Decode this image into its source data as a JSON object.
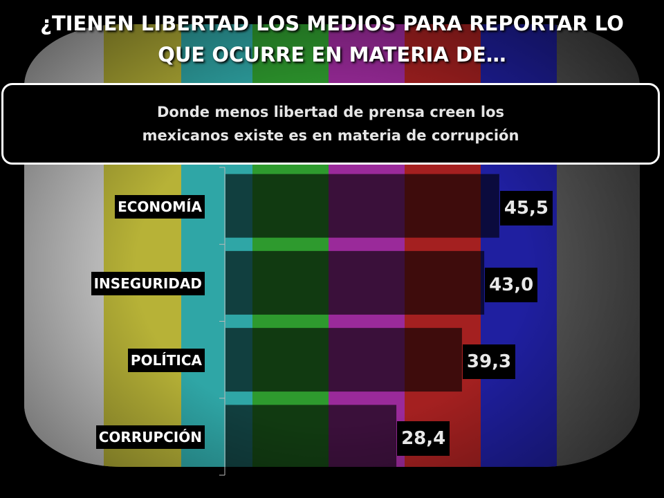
{
  "header": {
    "title_line1": "¿TIENEN LIBERTAD LOS MEDIOS PARA REPORTAR LO",
    "title_line2": "QUE OCURRE EN MATERIA DE…"
  },
  "callout": {
    "line1": "Donde menos libertad de prensa creen los",
    "line2": "mexicanos existe es en materia de corrupción"
  },
  "background": {
    "test_pattern_colors": [
      "#c8c8c8",
      "#b7b237",
      "#2fa6a6",
      "#2e9a2e",
      "#9a2a9a",
      "#a42020",
      "#1f1fa0"
    ]
  },
  "chart_data": {
    "type": "bar",
    "orientation": "horizontal",
    "categories": [
      "ECONOMÍA",
      "INSEGURIDAD",
      "POLÍTICA",
      "CORRUPCIÓN"
    ],
    "values": [
      45.5,
      43.0,
      39.3,
      28.4
    ],
    "value_labels": [
      "45,5",
      "43,0",
      "39,3",
      "28,4"
    ],
    "xlim": [
      0,
      50
    ],
    "grid": false,
    "legend": "none",
    "bar_color": "rgba(0,0,0,0.62)"
  }
}
